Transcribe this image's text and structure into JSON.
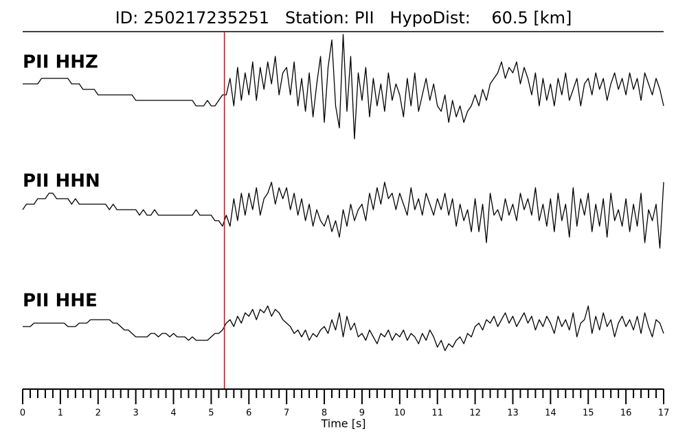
{
  "chart_data": {
    "type": "seismogram",
    "title": "ID: 250217235251   Station: PII   HypoDist:    60.5 [km]",
    "xlabel": "Time [s]",
    "xlim": [
      0,
      17
    ],
    "xticks": [
      0,
      1,
      2,
      3,
      4,
      5,
      6,
      7,
      8,
      9,
      10,
      11,
      12,
      13,
      14,
      15,
      16,
      17
    ],
    "minor_ticks_per_major": 5,
    "pick_time": 5.35,
    "pick_color": "#e8000b",
    "label_color": "#4e9a06",
    "x": [
      0,
      0.1,
      0.2,
      0.3,
      0.4,
      0.5,
      0.6,
      0.7,
      0.8,
      0.9,
      1,
      1.1,
      1.2,
      1.3,
      1.4,
      1.5,
      1.6,
      1.7,
      1.8,
      1.9,
      2,
      2.1,
      2.2,
      2.3,
      2.4,
      2.5,
      2.6,
      2.7,
      2.8,
      2.9,
      3,
      3.1,
      3.2,
      3.3,
      3.4,
      3.5,
      3.6,
      3.7,
      3.8,
      3.9,
      4,
      4.1,
      4.2,
      4.3,
      4.4,
      4.5,
      4.6,
      4.7,
      4.8,
      4.9,
      5,
      5.1,
      5.2,
      5.3,
      5.4,
      5.5,
      5.6,
      5.7,
      5.8,
      5.9,
      6,
      6.1,
      6.2,
      6.3,
      6.4,
      6.5,
      6.6,
      6.7,
      6.8,
      6.9,
      7,
      7.1,
      7.2,
      7.3,
      7.4,
      7.5,
      7.6,
      7.7,
      7.8,
      7.9,
      8,
      8.1,
      8.2,
      8.3,
      8.4,
      8.5,
      8.6,
      8.7,
      8.8,
      8.9,
      9,
      9.1,
      9.2,
      9.3,
      9.4,
      9.5,
      9.6,
      9.7,
      9.8,
      9.9,
      10,
      10.1,
      10.2,
      10.3,
      10.4,
      10.5,
      10.6,
      10.7,
      10.8,
      10.9,
      11,
      11.1,
      11.2,
      11.3,
      11.4,
      11.5,
      11.6,
      11.7,
      11.8,
      11.9,
      12,
      12.1,
      12.2,
      12.3,
      12.4,
      12.5,
      12.6,
      12.7,
      12.8,
      12.9,
      13,
      13.1,
      13.2,
      13.3,
      13.4,
      13.5,
      13.6,
      13.7,
      13.8,
      13.9,
      14,
      14.1,
      14.2,
      14.3,
      14.4,
      14.5,
      14.6,
      14.7,
      14.8,
      14.9,
      15,
      15.1,
      15.2,
      15.3,
      15.4,
      15.5,
      15.6,
      15.7,
      15.8,
      15.9,
      16,
      16.1,
      16.2,
      16.3,
      16.4,
      16.5,
      16.6,
      16.7,
      16.8,
      16.9,
      17
    ],
    "series": [
      {
        "name": "PII HHZ",
        "color": "#000000",
        "ylim": [
          -10,
          10
        ],
        "values": [
          1,
          1,
          1,
          1,
          1,
          2,
          2,
          2,
          2,
          2,
          2,
          2,
          2,
          1,
          1,
          1,
          0,
          0,
          0,
          0,
          -1,
          -1,
          -1,
          -1,
          -1,
          -1,
          -1,
          -1,
          -1,
          -1,
          -2,
          -2,
          -2,
          -2,
          -2,
          -2,
          -2,
          -2,
          -2,
          -2,
          -2,
          -2,
          -2,
          -2,
          -2,
          -2,
          -3,
          -3,
          -3,
          -2,
          -3,
          -3,
          -2,
          -1,
          -1,
          2,
          -3,
          4,
          -2,
          3,
          -1,
          5,
          -2,
          4,
          0,
          5,
          1,
          6,
          -1,
          3,
          4,
          -1,
          5,
          -3,
          2,
          -4,
          3,
          -5,
          1,
          6,
          -6,
          4,
          9,
          -3,
          -7,
          10,
          -4,
          6,
          -9,
          3,
          -2,
          4,
          -5,
          2,
          -3,
          1,
          -4,
          3,
          -2,
          1,
          -1,
          -5,
          2,
          -3,
          3,
          -4,
          -1,
          2,
          -2,
          1,
          -3,
          -4,
          -1,
          -6,
          -2,
          -5,
          -3,
          -6,
          -4,
          -3,
          -1,
          -3,
          0,
          -2,
          1,
          2,
          3,
          5,
          2,
          4,
          3,
          5,
          1,
          4,
          2,
          -1,
          3,
          -3,
          2,
          -2,
          1,
          -3,
          2,
          -1,
          3,
          -2,
          0,
          2,
          -3,
          1,
          2,
          -1,
          3,
          0,
          2,
          -2,
          1,
          3,
          0,
          2,
          -1,
          3,
          0,
          2,
          -2,
          3,
          1,
          -1,
          2,
          0,
          -3
        ]
      },
      {
        "name": "PII HHN",
        "color": "#000000",
        "ylim": [
          -10,
          10
        ],
        "values": [
          0,
          1,
          1,
          1,
          2,
          2,
          2,
          3,
          3,
          2,
          2,
          2,
          2,
          1,
          2,
          1,
          1,
          1,
          1,
          1,
          1,
          1,
          1,
          0,
          1,
          0,
          0,
          0,
          0,
          0,
          0,
          -1,
          0,
          -1,
          -1,
          0,
          -1,
          -1,
          -1,
          -1,
          -1,
          -1,
          -1,
          -1,
          -1,
          -1,
          0,
          -1,
          -1,
          -1,
          -1,
          -2,
          -2,
          -3,
          -1,
          -3,
          2,
          -2,
          3,
          -1,
          3,
          0,
          4,
          -1,
          2,
          3,
          5,
          1,
          4,
          2,
          4,
          0,
          3,
          -1,
          2,
          -2,
          1,
          -3,
          0,
          -2,
          -3,
          -1,
          -4,
          -2,
          -5,
          0,
          -3,
          1,
          -2,
          0,
          1,
          -2,
          3,
          0,
          4,
          1,
          5,
          2,
          3,
          0,
          3,
          1,
          -1,
          4,
          0,
          2,
          -1,
          3,
          1,
          -1,
          2,
          0,
          3,
          -1,
          2,
          -3,
          1,
          -2,
          0,
          -4,
          2,
          -4,
          1,
          -6,
          3,
          -1,
          0,
          -2,
          2,
          -1,
          1,
          -2,
          3,
          0,
          2,
          -1,
          4,
          -2,
          1,
          -3,
          2,
          -4,
          3,
          -2,
          1,
          -5,
          4,
          -3,
          2,
          -1,
          3,
          -4,
          1,
          -3,
          2,
          -5,
          3,
          -2,
          0,
          -3,
          2,
          -4,
          1,
          -3,
          3,
          -6,
          0,
          -2,
          1,
          -7,
          5
        ]
      },
      {
        "name": "PII HHE",
        "color": "#000000",
        "ylim": [
          -10,
          10
        ],
        "values": [
          0,
          0,
          0,
          1,
          1,
          1,
          1,
          1,
          1,
          1,
          1,
          1,
          0,
          0,
          0,
          1,
          1,
          1,
          2,
          2,
          2,
          2,
          2,
          2,
          1,
          1,
          0,
          -1,
          -1,
          -2,
          -3,
          -3,
          -3,
          -3,
          -2,
          -2,
          -3,
          -2,
          -2,
          -3,
          -2,
          -3,
          -3,
          -3,
          -4,
          -3,
          -4,
          -4,
          -4,
          -4,
          -3,
          -2,
          -2,
          -1,
          1,
          2,
          0,
          3,
          1,
          4,
          3,
          5,
          2,
          5,
          4,
          6,
          3,
          5,
          4,
          2,
          1,
          0,
          -2,
          -1,
          -3,
          -1,
          -4,
          -2,
          -3,
          -1,
          0,
          -2,
          2,
          -1,
          4,
          -3,
          3,
          -1,
          1,
          -3,
          -2,
          -4,
          -1,
          -3,
          -5,
          -2,
          -3,
          -1,
          -4,
          -2,
          -3,
          -1,
          -4,
          -2,
          -3,
          -5,
          -2,
          -4,
          -1,
          -3,
          -6,
          -4,
          -7,
          -5,
          -6,
          -4,
          -3,
          -5,
          -2,
          -3,
          0,
          1,
          -1,
          2,
          1,
          3,
          0,
          2,
          4,
          1,
          3,
          0,
          2,
          4,
          1,
          3,
          -1,
          2,
          0,
          3,
          1,
          -2,
          3,
          0,
          2,
          -1,
          4,
          -3,
          1,
          2,
          6,
          -2,
          3,
          -1,
          4,
          0,
          2,
          -3,
          1,
          3,
          0,
          2,
          -1,
          3,
          -2,
          4,
          0,
          -3,
          2,
          1,
          -2
        ]
      }
    ]
  }
}
